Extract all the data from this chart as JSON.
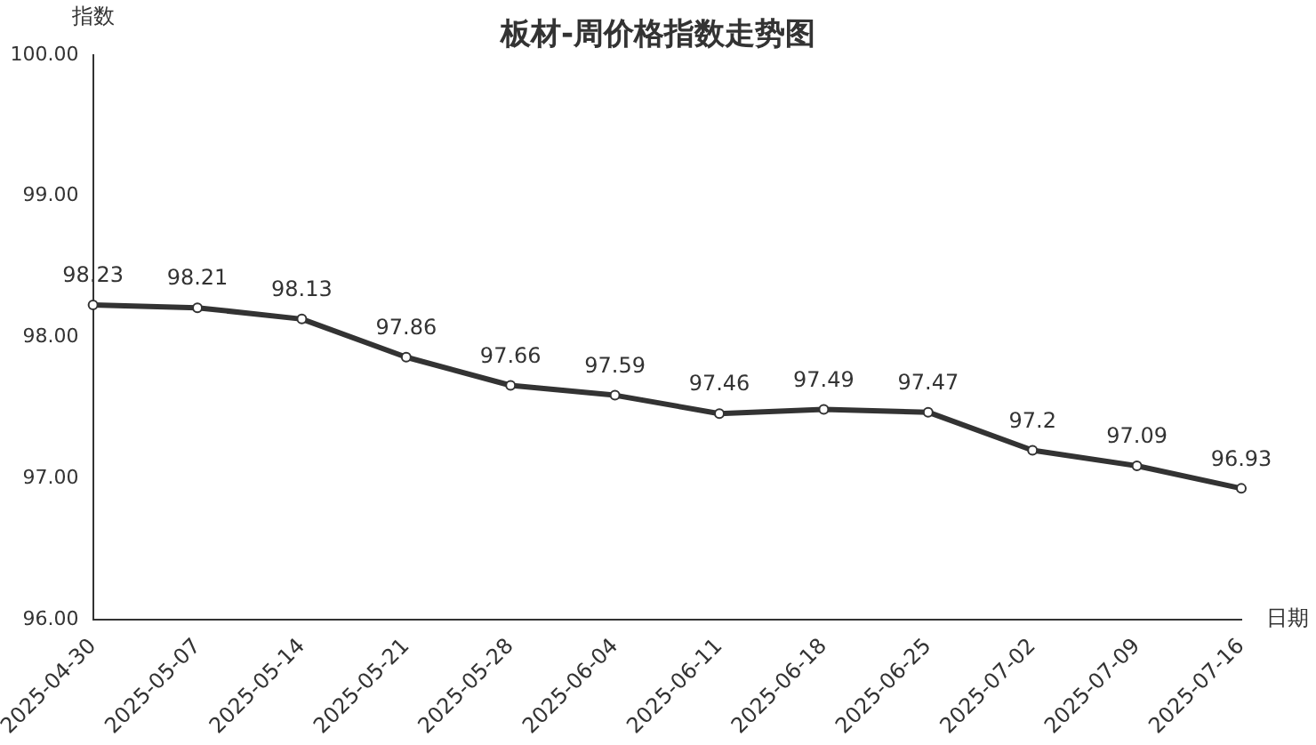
{
  "chart_data": {
    "type": "line",
    "title": "板材-周价格指数走势图",
    "xlabel": "日期",
    "ylabel": "指数",
    "categories": [
      "2025-04-30",
      "2025-05-07",
      "2025-05-14",
      "2025-05-21",
      "2025-05-28",
      "2025-06-04",
      "2025-06-11",
      "2025-06-18",
      "2025-06-25",
      "2025-07-02",
      "2025-07-09",
      "2025-07-16"
    ],
    "series": [
      {
        "color": "#333333",
        "values": [
          98.23,
          98.21,
          98.13,
          97.86,
          97.66,
          97.59,
          97.46,
          97.49,
          97.47,
          97.2,
          97.09,
          96.93
        ]
      }
    ],
    "ylim": [
      96,
      100
    ],
    "yticks": [
      {
        "value": 96,
        "label": "96.00"
      },
      {
        "value": 97,
        "label": "97.00"
      },
      {
        "value": 98,
        "label": "98.00"
      },
      {
        "value": 99,
        "label": "99.00"
      },
      {
        "value": 100,
        "label": "100.00"
      }
    ],
    "grid": false,
    "legend": false,
    "marker": "circle",
    "line_style": "solid",
    "data_labels": true
  }
}
